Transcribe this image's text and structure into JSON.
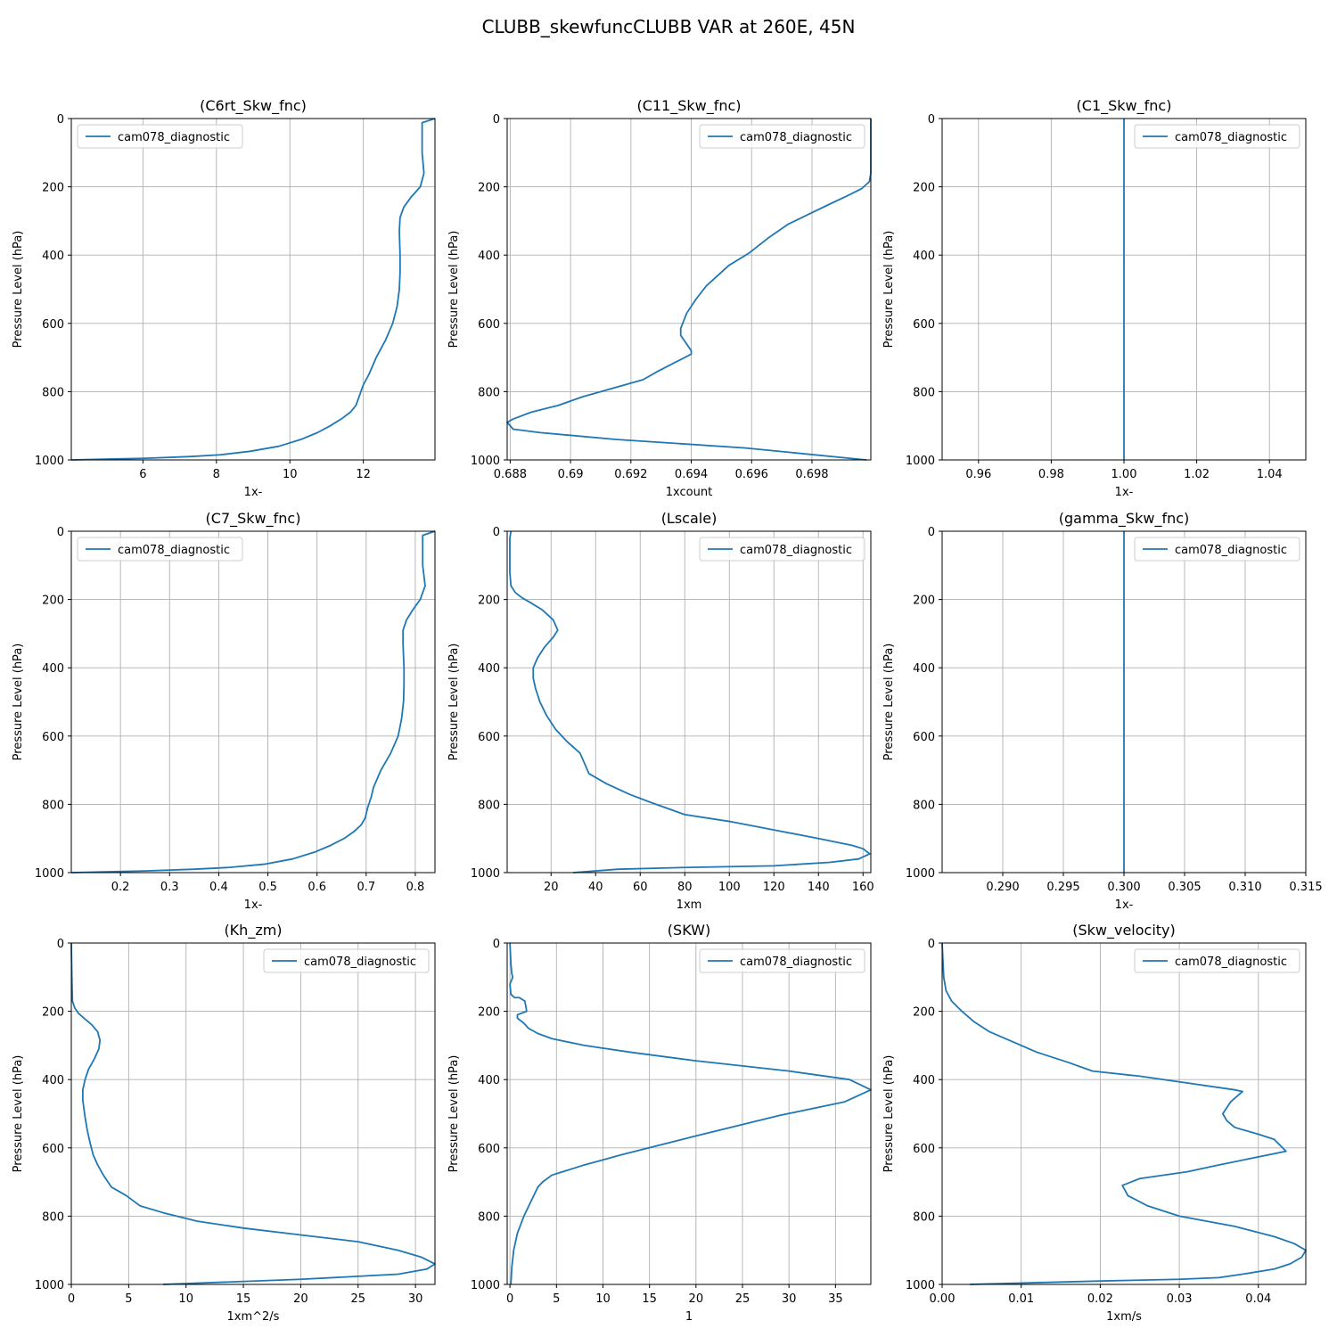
{
  "figure": {
    "title": "CLUBB_skewfuncCLUBB VAR at 260E, 45N"
  },
  "colors": {
    "series": "#1f77b4",
    "grid": "#b0b0b0",
    "axes": "#000000",
    "legend_border": "#cccccc"
  },
  "chart_data": [
    {
      "type": "line",
      "title": "(C6rt_Skw_fnc)",
      "xlabel": "1x-",
      "ylabel": "Pressure Level (hPa)",
      "xlim": [
        4.05,
        13.95
      ],
      "ylim": [
        1000,
        0
      ],
      "y_inverted": true,
      "xticks": [
        6,
        8,
        10,
        12
      ],
      "yticks": [
        0,
        200,
        400,
        600,
        800,
        1000
      ],
      "grid": true,
      "legend": "upper left",
      "series": [
        {
          "name": "cam078_diagnostic",
          "x": [
            13.95,
            13.6,
            13.6,
            13.6,
            13.65,
            13.55,
            13.3,
            13.1,
            13.0,
            12.98,
            13.0,
            13.0,
            12.98,
            12.92,
            12.8,
            12.6,
            12.35,
            12.15,
            12.0,
            11.9,
            11.8,
            11.65,
            11.4,
            11.1,
            10.75,
            10.3,
            9.7,
            8.9,
            8.1,
            7.3,
            6.1,
            4.05
          ],
          "y": [
            0,
            12,
            50,
            100,
            160,
            200,
            230,
            260,
            290,
            330,
            400,
            450,
            500,
            550,
            600,
            650,
            700,
            750,
            780,
            810,
            840,
            860,
            880,
            900,
            920,
            940,
            960,
            975,
            985,
            990,
            995,
            1000
          ]
        }
      ]
    },
    {
      "type": "line",
      "title": "(C11_Skw_fnc)",
      "xlabel": "1xcount",
      "ylabel": "Pressure Level (hPa)",
      "xlim": [
        0.6879,
        0.69995
      ],
      "ylim": [
        1000,
        0
      ],
      "y_inverted": true,
      "xticks": [
        0.688,
        0.69,
        0.692,
        0.694,
        0.696,
        0.698
      ],
      "yticks": [
        0,
        200,
        400,
        600,
        800,
        1000
      ],
      "grid": true,
      "legend": "upper right",
      "series": [
        {
          "name": "cam078_diagnostic",
          "x": [
            0.69995,
            0.69995,
            0.69995,
            0.6999,
            0.69965,
            0.6992,
            0.6986,
            0.6979,
            0.6972,
            0.69655,
            0.6959,
            0.69525,
            0.6945,
            0.69415,
            0.69385,
            0.69365,
            0.69365,
            0.694,
            0.694,
            0.69345,
            0.6929,
            0.6924,
            0.6918,
            0.6912,
            0.6904,
            0.6896,
            0.6887,
            0.6881,
            0.6879,
            0.6881,
            0.689,
            0.6915,
            0.6958,
            0.6998
          ],
          "y": [
            0,
            100,
            160,
            185,
            205,
            225,
            250,
            280,
            310,
            350,
            395,
            430,
            490,
            530,
            570,
            615,
            635,
            680,
            690,
            715,
            740,
            765,
            780,
            795,
            815,
            840,
            860,
            880,
            890,
            910,
            920,
            940,
            965,
            1000
          ]
        }
      ]
    },
    {
      "type": "line",
      "title": "(C1_Skw_fnc)",
      "xlabel": "1x-",
      "ylabel": "Pressure Level (hPa)",
      "xlim": [
        0.95,
        1.05
      ],
      "ylim": [
        1000,
        0
      ],
      "y_inverted": true,
      "xticks": [
        0.96,
        0.98,
        1.0,
        1.02,
        1.04
      ],
      "xtick_decimals": 2,
      "yticks": [
        0,
        200,
        400,
        600,
        800,
        1000
      ],
      "grid": true,
      "legend": "upper right",
      "series": [
        {
          "name": "cam078_diagnostic",
          "x": [
            1.0,
            1.0
          ],
          "y": [
            0,
            1000
          ]
        }
      ]
    },
    {
      "type": "line",
      "title": "(C7_Skw_fnc)",
      "xlabel": "1x-",
      "ylabel": "Pressure Level (hPa)",
      "xlim": [
        0.1,
        0.84
      ],
      "ylim": [
        1000,
        0
      ],
      "y_inverted": true,
      "xticks": [
        0.2,
        0.3,
        0.4,
        0.5,
        0.6,
        0.7,
        0.8
      ],
      "yticks": [
        0,
        200,
        400,
        600,
        800,
        1000
      ],
      "grid": true,
      "legend": "upper left",
      "series": [
        {
          "name": "cam078_diagnostic",
          "x": [
            0.84,
            0.815,
            0.815,
            0.815,
            0.82,
            0.81,
            0.795,
            0.782,
            0.775,
            0.775,
            0.777,
            0.777,
            0.776,
            0.772,
            0.765,
            0.75,
            0.73,
            0.715,
            0.71,
            0.703,
            0.698,
            0.69,
            0.675,
            0.655,
            0.628,
            0.595,
            0.55,
            0.495,
            0.42,
            0.35,
            0.25,
            0.1
          ],
          "y": [
            0,
            12,
            50,
            100,
            160,
            200,
            230,
            260,
            290,
            330,
            400,
            450,
            500,
            550,
            600,
            650,
            700,
            750,
            780,
            810,
            840,
            860,
            880,
            900,
            920,
            940,
            960,
            975,
            985,
            990,
            995,
            1000
          ]
        }
      ]
    },
    {
      "type": "line",
      "title": "(Lscale)",
      "xlabel": "1xm",
      "ylabel": "Pressure Level (hPa)",
      "xlim": [
        0.3,
        163.5
      ],
      "ylim": [
        1000,
        0
      ],
      "y_inverted": true,
      "xticks": [
        20,
        40,
        60,
        80,
        100,
        120,
        140,
        160
      ],
      "yticks": [
        0,
        200,
        400,
        600,
        800,
        1000
      ],
      "grid": true,
      "legend": "upper right",
      "series": [
        {
          "name": "cam078_diagnostic",
          "x": [
            2,
            1.5,
            1.5,
            1.5,
            2,
            4,
            7,
            11,
            16,
            21,
            23,
            21,
            17,
            14,
            12,
            12,
            13,
            15,
            18,
            22,
            27,
            33,
            37,
            45,
            55,
            65,
            80,
            100,
            120,
            140,
            155,
            160,
            163,
            158,
            145,
            120,
            80,
            50,
            30
          ],
          "y": [
            0,
            20,
            60,
            120,
            160,
            180,
            195,
            210,
            230,
            260,
            290,
            310,
            340,
            370,
            400,
            430,
            460,
            500,
            540,
            580,
            615,
            650,
            710,
            740,
            770,
            795,
            830,
            850,
            875,
            900,
            920,
            930,
            945,
            960,
            970,
            980,
            985,
            990,
            1000
          ]
        }
      ]
    },
    {
      "type": "line",
      "title": "(gamma_Skw_fnc)",
      "xlabel": "1x-",
      "ylabel": "Pressure Level (hPa)",
      "xlim": [
        0.285,
        0.315
      ],
      "ylim": [
        1000,
        0
      ],
      "y_inverted": true,
      "xticks": [
        0.29,
        0.295,
        0.3,
        0.305,
        0.31,
        0.315
      ],
      "xtick_decimals": 3,
      "yticks": [
        0,
        200,
        400,
        600,
        800,
        1000
      ],
      "grid": true,
      "legend": "upper right",
      "series": [
        {
          "name": "cam078_diagnostic",
          "x": [
            0.3,
            0.3
          ],
          "y": [
            0,
            1000
          ]
        }
      ]
    },
    {
      "type": "line",
      "title": "(Kh_zm)",
      "xlabel": "1xm^2/s",
      "ylabel": "Pressure Level (hPa)",
      "xlim": [
        0,
        31.7
      ],
      "ylim": [
        1000,
        0
      ],
      "y_inverted": true,
      "xticks": [
        0,
        5,
        10,
        15,
        20,
        25,
        30
      ],
      "yticks": [
        0,
        200,
        400,
        600,
        800,
        1000
      ],
      "grid": true,
      "legend": "upper right",
      "series": [
        {
          "name": "cam078_diagnostic",
          "x": [
            0,
            0.05,
            0.1,
            0.3,
            0.6,
            1.1,
            1.8,
            2.3,
            2.5,
            2.4,
            2.0,
            1.5,
            1.2,
            1.0,
            1.0,
            1.2,
            1.4,
            1.6,
            1.9,
            2.3,
            2.8,
            3.5,
            4.8,
            6.0,
            8.0,
            11,
            15,
            20,
            25,
            28.5,
            30.5,
            31.7,
            31,
            28.5,
            20,
            8
          ],
          "y": [
            0,
            100,
            170,
            190,
            205,
            220,
            240,
            260,
            285,
            310,
            340,
            370,
            400,
            430,
            460,
            510,
            550,
            580,
            620,
            650,
            680,
            715,
            740,
            770,
            790,
            815,
            835,
            855,
            875,
            900,
            920,
            940,
            955,
            970,
            985,
            1000
          ]
        }
      ]
    },
    {
      "type": "line",
      "title": "(SKW)",
      "xlabel": "1",
      "ylabel": "Pressure Level (hPa)",
      "xlim": [
        -0.3,
        38.8
      ],
      "ylim": [
        1000,
        0
      ],
      "y_inverted": true,
      "xticks": [
        0,
        5,
        10,
        15,
        20,
        25,
        30,
        35
      ],
      "yticks": [
        0,
        200,
        400,
        600,
        800,
        1000
      ],
      "grid": true,
      "legend": "upper right",
      "series": [
        {
          "name": "cam078_diagnostic",
          "x": [
            0,
            0.1,
            0.2,
            0.3,
            0.0,
            0.1,
            0.5,
            1.0,
            1.6,
            1.8,
            0.8,
            0.8,
            1.5,
            2.0,
            3.0,
            4.5,
            8.0,
            13.0,
            20.0,
            30.0,
            36.5,
            38.8,
            36.0,
            29.0,
            20.0,
            12.0,
            8.0,
            4.5,
            3.5,
            3.0,
            2.2,
            1.5,
            0.8,
            0.4,
            0.2,
            0.1
          ],
          "y": [
            0,
            60,
            90,
            100,
            120,
            150,
            160,
            160,
            170,
            200,
            210,
            220,
            235,
            250,
            265,
            280,
            300,
            320,
            345,
            375,
            400,
            430,
            465,
            505,
            565,
            620,
            650,
            680,
            700,
            715,
            760,
            800,
            850,
            900,
            950,
            1000
          ]
        }
      ]
    },
    {
      "type": "line",
      "title": "(Skw_velocity)",
      "xlabel": "1xm/s",
      "ylabel": "Pressure Level (hPa)",
      "xlim": [
        0,
        0.046
      ],
      "ylim": [
        1000,
        0
      ],
      "y_inverted": true,
      "xticks": [
        0.0,
        0.01,
        0.02,
        0.03,
        0.04
      ],
      "xtick_decimals": 2,
      "yticks": [
        0,
        200,
        400,
        600,
        800,
        1000
      ],
      "grid": true,
      "legend": "upper right",
      "series": [
        {
          "name": "cam078_diagnostic",
          "x": [
            0,
            0.0001,
            0.0002,
            0.0005,
            0.0012,
            0.0025,
            0.004,
            0.006,
            0.009,
            0.012,
            0.016,
            0.019,
            0.025,
            0.031,
            0.037,
            0.038,
            0.0365,
            0.0355,
            0.036,
            0.037,
            0.04,
            0.042,
            0.0435,
            0.035,
            0.031,
            0.025,
            0.0228,
            0.0235,
            0.026,
            0.03,
            0.037,
            0.042,
            0.0445,
            0.046,
            0.0455,
            0.044,
            0.042,
            0.038,
            0.035,
            0.03,
            0.02,
            0.0035
          ],
          "y": [
            0,
            50,
            100,
            140,
            170,
            200,
            230,
            260,
            290,
            320,
            350,
            375,
            390,
            410,
            430,
            435,
            465,
            500,
            520,
            540,
            560,
            575,
            610,
            650,
            670,
            690,
            710,
            740,
            770,
            800,
            830,
            860,
            880,
            900,
            920,
            940,
            955,
            970,
            980,
            985,
            990,
            1000
          ]
        }
      ]
    }
  ]
}
